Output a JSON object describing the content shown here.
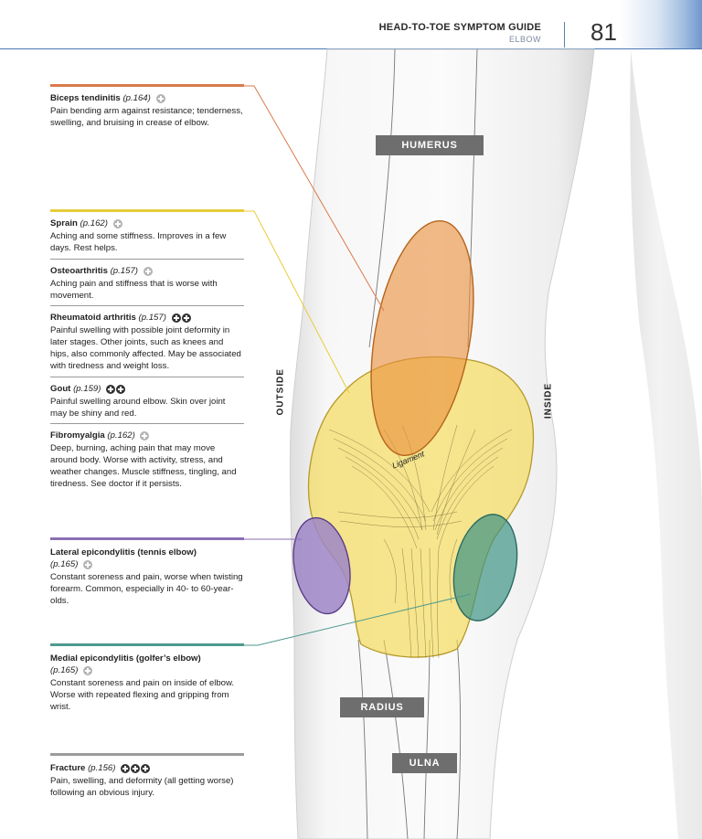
{
  "header": {
    "title": "HEAD-TO-TOE SYMPTOM GUIDE",
    "subtitle": "ELBOW",
    "page_number": "81"
  },
  "colors": {
    "biceps": "#d97b4a",
    "sprain_group": "#e8cc3a",
    "lateral": "#8a6fb5",
    "medial": "#4d9a8e",
    "fracture": "#9b9b9b",
    "header_accent": "#4a78b5"
  },
  "conditions": [
    {
      "name": "Biceps tendinitis",
      "ref": "(p.164)",
      "icons": [
        "plus-light"
      ],
      "desc": "Pain bending arm against resistance; tenderness, swelling, and bruising in crease of elbow."
    },
    {
      "name": "Sprain",
      "ref": "(p.162)",
      "icons": [
        "plus-light"
      ],
      "desc": "Aching and some stiffness. Improves in a few days. Rest helps."
    },
    {
      "name": "Osteoarthritis",
      "ref": "(p.157)",
      "icons": [
        "plus-light"
      ],
      "desc": "Aching pain and stiffness that is worse with movement."
    },
    {
      "name": "Rheumatoid arthritis",
      "ref": "(p.157)",
      "icons": [
        "plus-dark",
        "plus-dark"
      ],
      "desc": "Painful swelling with possible joint deformity in later stages. Other joints, such as knees and hips, also commonly affected. May be associated with tiredness and weight loss."
    },
    {
      "name": "Gout",
      "ref": "(p.159)",
      "icons": [
        "plus-dark",
        "plus-dark"
      ],
      "desc": "Painful swelling around elbow. Skin over joint may be shiny and red."
    },
    {
      "name": "Fibromyalgia",
      "ref": "(p.162)",
      "icons": [
        "plus-light"
      ],
      "desc": "Deep, burning, aching pain that may move around body. Worse with activity, stress, and weather changes. Muscle stiffness, tingling, and tiredness. See doctor if it persists."
    },
    {
      "name": "Lateral epicondylitis (tennis elbow)",
      "ref": "(p.165)",
      "icons": [
        "plus-light"
      ],
      "desc": "Constant soreness and pain, worse when twisting forearm. Common, especially in 40- to 60-year-olds."
    },
    {
      "name": "Medial epicondylitis (golfer’s elbow)",
      "ref": "(p.165)",
      "icons": [
        "plus-light"
      ],
      "desc": "Constant soreness and pain on inside of elbow. Worse with repeated flexing and gripping from wrist."
    },
    {
      "name": "Fracture",
      "ref": "(p.156)",
      "icons": [
        "plus-dark",
        "plus-dark",
        "plus-dark"
      ],
      "desc": "Pain, swelling, and deformity (all getting worse) following an obvious injury."
    }
  ],
  "diagram": {
    "bones": [
      "HUMERUS",
      "RADIUS",
      "ULNA"
    ],
    "sides": {
      "outside": "OUTSIDE",
      "inside": "INSIDE"
    },
    "ligament": "Ligament"
  }
}
